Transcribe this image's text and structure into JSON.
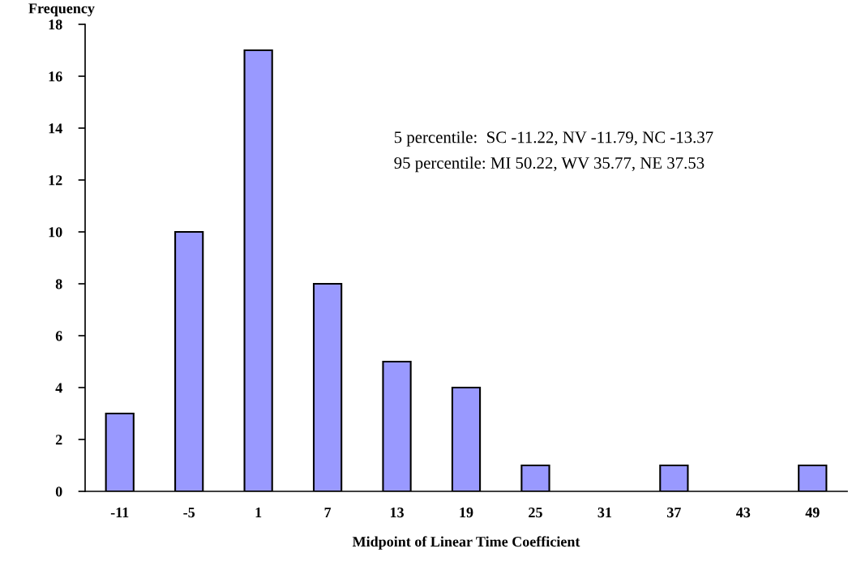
{
  "chart_data": {
    "type": "bar",
    "xlabel": "Midpoint of Linear Time Coefficient",
    "ylabel": "Frequency",
    "categories": [
      "-11",
      "-5",
      "1",
      "7",
      "13",
      "19",
      "25",
      "31",
      "37",
      "43",
      "49"
    ],
    "values": [
      3,
      10,
      17,
      8,
      5,
      4,
      1,
      0,
      1,
      0,
      1
    ],
    "color": "#9999ff",
    "ylim": [
      0,
      18
    ],
    "yticks": [
      0,
      2,
      4,
      6,
      8,
      10,
      12,
      14,
      16,
      18
    ],
    "grid": false,
    "legend": false,
    "annotations": [
      "5 percentile:  SC -11.22, NV -11.79, NC -13.37",
      "95 percentile: MI 50.22, WV 35.77, NE 37.53"
    ]
  }
}
